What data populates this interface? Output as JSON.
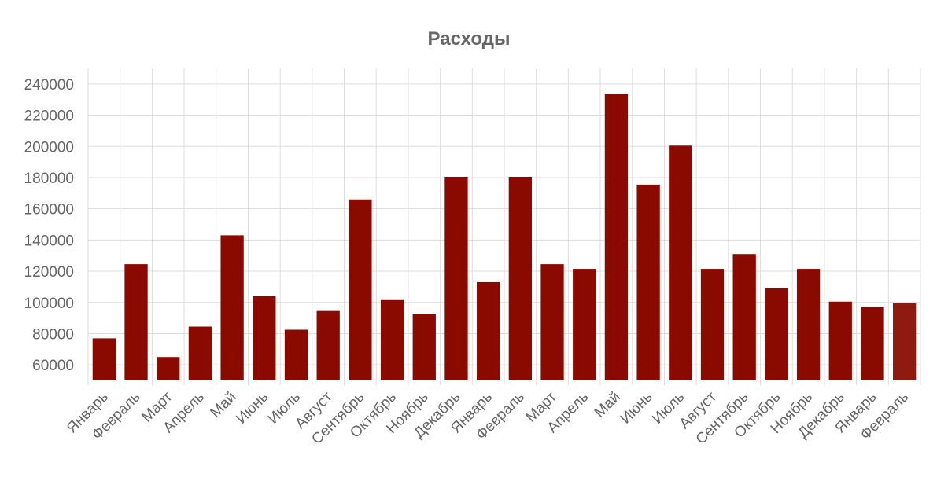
{
  "chart_data": {
    "type": "bar",
    "title": "Расходы",
    "categories": [
      "Январь",
      "Февраль",
      "Март",
      "Апрель",
      "Май",
      "Июнь",
      "Июль",
      "Август",
      "Сентябрь",
      "Октябрь",
      "Ноябрь",
      "Декабрь",
      "Январь",
      "Февраль",
      "Март",
      "Апрель",
      "Май",
      "Июнь",
      "Июль",
      "Август",
      "Сентябрь",
      "Октябрь",
      "Ноябрь",
      "Декабрь",
      "Январь",
      "Февраль"
    ],
    "values": [
      77000,
      124500,
      65000,
      84500,
      143000,
      104000,
      82500,
      94500,
      166000,
      101500,
      92500,
      180500,
      113000,
      180500,
      124500,
      121500,
      233500,
      175500,
      200500,
      121500,
      131000,
      109000,
      121500,
      100500,
      97000,
      99500
    ],
    "xlabel": "",
    "ylabel": "",
    "ylim": [
      50000,
      250000
    ],
    "yticks": [
      60000,
      80000,
      100000,
      120000,
      140000,
      160000,
      180000,
      200000,
      220000,
      240000
    ],
    "grid": true,
    "colors": {
      "bar": "#8b0a00",
      "last_bar": "#8f1a10",
      "grid": "#dddddd",
      "axis_text": "#666666",
      "title": "#666666"
    }
  }
}
